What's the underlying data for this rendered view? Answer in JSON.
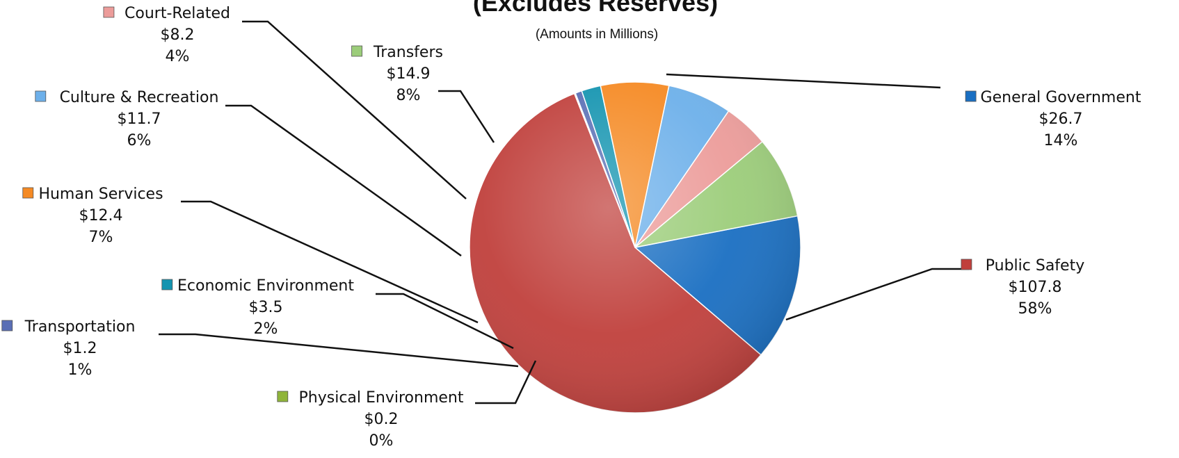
{
  "chart_data": {
    "type": "pie",
    "title": "(Excludes Reserves)",
    "subtitle": "(Amounts in Millions)",
    "slices": [
      {
        "name": "General Government",
        "value": 26.7,
        "value_label": "$26.7",
        "percent_label": "14%",
        "color": "#1a6fc2"
      },
      {
        "name": "Public Safety",
        "value": 107.8,
        "value_label": "$107.8",
        "percent_label": "58%",
        "color": "#c0403c"
      },
      {
        "name": "Physical Environment",
        "value": 0.2,
        "value_label": "$0.2",
        "percent_label": "0%",
        "color": "#8fb43a"
      },
      {
        "name": "Transportation",
        "value": 1.2,
        "value_label": "$1.2",
        "percent_label": "1%",
        "color": "#5a6fb5"
      },
      {
        "name": "Economic Environment",
        "value": 3.5,
        "value_label": "$3.5",
        "percent_label": "2%",
        "color": "#1494b0"
      },
      {
        "name": "Human Services",
        "value": 12.4,
        "value_label": "$12.4",
        "percent_label": "7%",
        "color": "#f58a24"
      },
      {
        "name": "Culture & Recreation",
        "value": 11.7,
        "value_label": "$11.7",
        "percent_label": "6%",
        "color": "#6db0ea"
      },
      {
        "name": "Court-Related",
        "value": 8.2,
        "value_label": "$8.2",
        "percent_label": "4%",
        "color": "#ec9c9a"
      },
      {
        "name": "Transfers",
        "value": 14.9,
        "value_label": "$14.9",
        "percent_label": "8%",
        "color": "#9ccd7a"
      }
    ],
    "start_angle_deg": -11,
    "direction": "clockwise"
  }
}
